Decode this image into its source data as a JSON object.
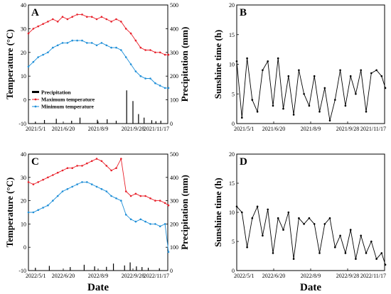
{
  "colors": {
    "max_temperature": "#e8202a",
    "min_temperature": "#1f8fd8",
    "precipitation": "#000000",
    "sunshine": "#000000"
  },
  "x_axis_label": "Date",
  "chart_data": [
    {
      "panel": "A",
      "type": "line",
      "ylabel": "Temperature (°C)",
      "y2label": "Precipitation (mm)",
      "ylim": [
        -10,
        40
      ],
      "yticks": [
        -10,
        0,
        10,
        20,
        30,
        40
      ],
      "y2lim": [
        0,
        500
      ],
      "y2ticks": [
        0,
        100,
        200,
        300,
        400,
        500
      ],
      "xlim": [
        0,
        200
      ],
      "xtick_positions": [
        0,
        50,
        100,
        150,
        200
      ],
      "xtick_labels": [
        "2021/5/1",
        "2021/6/20",
        "2021/8/9",
        "2021/9/28",
        "2021/11/17"
      ],
      "legend_position": "lower-left",
      "legend": [
        "Precipitation",
        "Maximum temperature",
        "Minimum temperature"
      ],
      "series": [
        {
          "name": "Maximum temperature",
          "kind": "max",
          "x": [
            0,
            7,
            14,
            21,
            28,
            35,
            42,
            49,
            56,
            63,
            70,
            77,
            84,
            91,
            98,
            105,
            112,
            119,
            126,
            133,
            140,
            147,
            154,
            161,
            168,
            175,
            182,
            189,
            196,
            201
          ],
          "y": [
            28,
            30,
            31,
            32,
            33,
            34,
            33,
            35,
            34,
            35,
            36,
            36,
            35,
            35,
            34,
            35,
            34,
            33,
            34,
            33,
            30,
            28,
            25,
            22,
            21,
            21,
            20,
            20,
            19,
            19
          ]
        },
        {
          "name": "Minimum temperature",
          "kind": "min",
          "x": [
            0,
            7,
            14,
            21,
            28,
            35,
            42,
            49,
            56,
            63,
            70,
            77,
            84,
            91,
            98,
            105,
            112,
            119,
            126,
            133,
            140,
            147,
            154,
            161,
            168,
            175,
            182,
            189,
            196,
            201
          ],
          "y": [
            14,
            16,
            18,
            19,
            20,
            22,
            23,
            24,
            24,
            25,
            25,
            25,
            24,
            24,
            23,
            24,
            23,
            22,
            22,
            21,
            18,
            15,
            12,
            10,
            9,
            9,
            7,
            6,
            5,
            5
          ]
        },
        {
          "name": "Precipitation",
          "kind": "precip",
          "x": [
            10,
            23,
            40,
            62,
            74,
            99,
            113,
            126,
            141,
            150,
            158,
            166,
            177,
            183,
            190
          ],
          "y": [
            8,
            15,
            20,
            12,
            25,
            16,
            18,
            12,
            140,
            95,
            40,
            25,
            14,
            10,
            12
          ]
        }
      ]
    },
    {
      "panel": "B",
      "type": "line",
      "ylabel": "Sunshine time (h)",
      "ylim": [
        0,
        20
      ],
      "yticks": [
        0,
        5,
        10,
        15,
        20
      ],
      "xlim": [
        0,
        200
      ],
      "xtick_positions": [
        0,
        50,
        100,
        150,
        200
      ],
      "xtick_labels": [
        "2021/5/1",
        "2021/6/20",
        "2021/8/9",
        "2021/9/28",
        "2021/11/17"
      ],
      "series": [
        {
          "name": "Sunshine time",
          "kind": "sun",
          "x": [
            0,
            7,
            14,
            21,
            28,
            35,
            42,
            49,
            56,
            63,
            70,
            77,
            84,
            91,
            98,
            105,
            112,
            119,
            126,
            133,
            140,
            147,
            154,
            161,
            168,
            175,
            182,
            189,
            196,
            201
          ],
          "y": [
            10.5,
            1,
            11,
            4,
            2,
            9,
            10.5,
            3,
            11,
            2.5,
            8,
            1.5,
            9,
            5,
            3,
            8,
            2,
            6,
            0.5,
            4,
            9,
            3,
            8,
            5,
            9,
            2,
            8.5,
            9,
            8,
            6
          ]
        }
      ]
    },
    {
      "panel": "C",
      "type": "line",
      "ylabel": "Temperature (°C)",
      "y2label": "Precipitation (mm)",
      "ylim": [
        -10,
        40
      ],
      "yticks": [
        -10,
        0,
        10,
        20,
        30,
        40
      ],
      "y2lim": [
        0,
        500
      ],
      "y2ticks": [
        0,
        100,
        200,
        300,
        400,
        500
      ],
      "xlim": [
        0,
        200
      ],
      "xtick_positions": [
        0,
        50,
        100,
        150,
        200
      ],
      "xtick_labels": [
        "2022/5/1",
        "2022/6/20",
        "2022/8/9",
        "2022/9/28",
        "2022/11/17"
      ],
      "series": [
        {
          "name": "Maximum temperature",
          "kind": "max",
          "x": [
            0,
            7,
            14,
            21,
            28,
            35,
            42,
            49,
            56,
            63,
            70,
            77,
            84,
            91,
            98,
            105,
            112,
            119,
            126,
            133,
            140,
            147,
            154,
            161,
            168,
            175,
            182,
            189,
            196,
            201
          ],
          "y": [
            28,
            27,
            28,
            29,
            30,
            31,
            32,
            33,
            34,
            34,
            35,
            35,
            36,
            37,
            38,
            37,
            35,
            33,
            34,
            38,
            24,
            22,
            23,
            22,
            22,
            21,
            20,
            20,
            19,
            18
          ]
        },
        {
          "name": "Minimum temperature",
          "kind": "min",
          "x": [
            0,
            7,
            14,
            21,
            28,
            35,
            42,
            49,
            56,
            63,
            70,
            77,
            84,
            91,
            98,
            105,
            112,
            119,
            126,
            133,
            140,
            147,
            154,
            161,
            168,
            175,
            182,
            189,
            196,
            201
          ],
          "y": [
            15,
            15,
            16,
            17,
            18,
            20,
            22,
            24,
            25,
            26,
            27,
            28,
            28,
            27,
            26,
            25,
            24,
            22,
            21,
            20,
            14,
            12,
            11,
            12,
            11,
            10,
            10,
            9,
            10,
            -2
          ]
        },
        {
          "name": "Precipitation",
          "kind": "precip",
          "x": [
            10,
            30,
            60,
            80,
            95,
            112,
            122,
            138,
            146,
            155,
            163,
            172,
            188
          ],
          "y": [
            12,
            20,
            15,
            25,
            18,
            16,
            30,
            22,
            35,
            18,
            15,
            12,
            10
          ]
        }
      ]
    },
    {
      "panel": "D",
      "type": "line",
      "ylabel": "Sunshine time (h)",
      "ylim": [
        0,
        20
      ],
      "yticks": [
        0,
        5,
        10,
        15,
        20
      ],
      "xlim": [
        0,
        200
      ],
      "xtick_positions": [
        0,
        50,
        100,
        150,
        200
      ],
      "xtick_labels": [
        "2022/5/1",
        "2022/6/20",
        "2022/8/9",
        "2022/9/28",
        "2022/11/17"
      ],
      "series": [
        {
          "name": "Sunshine time",
          "kind": "sun",
          "x": [
            0,
            7,
            14,
            21,
            28,
            35,
            42,
            49,
            56,
            63,
            70,
            77,
            84,
            91,
            98,
            105,
            112,
            119,
            126,
            133,
            140,
            147,
            154,
            161,
            168,
            175,
            182,
            189,
            196,
            201
          ],
          "y": [
            11,
            10,
            4,
            9,
            11,
            6,
            10.5,
            3,
            9,
            7,
            10,
            2,
            9,
            8,
            9,
            8,
            3,
            8,
            9,
            4,
            6,
            3,
            7,
            2,
            6,
            3,
            5,
            2,
            3,
            1
          ]
        }
      ]
    }
  ]
}
